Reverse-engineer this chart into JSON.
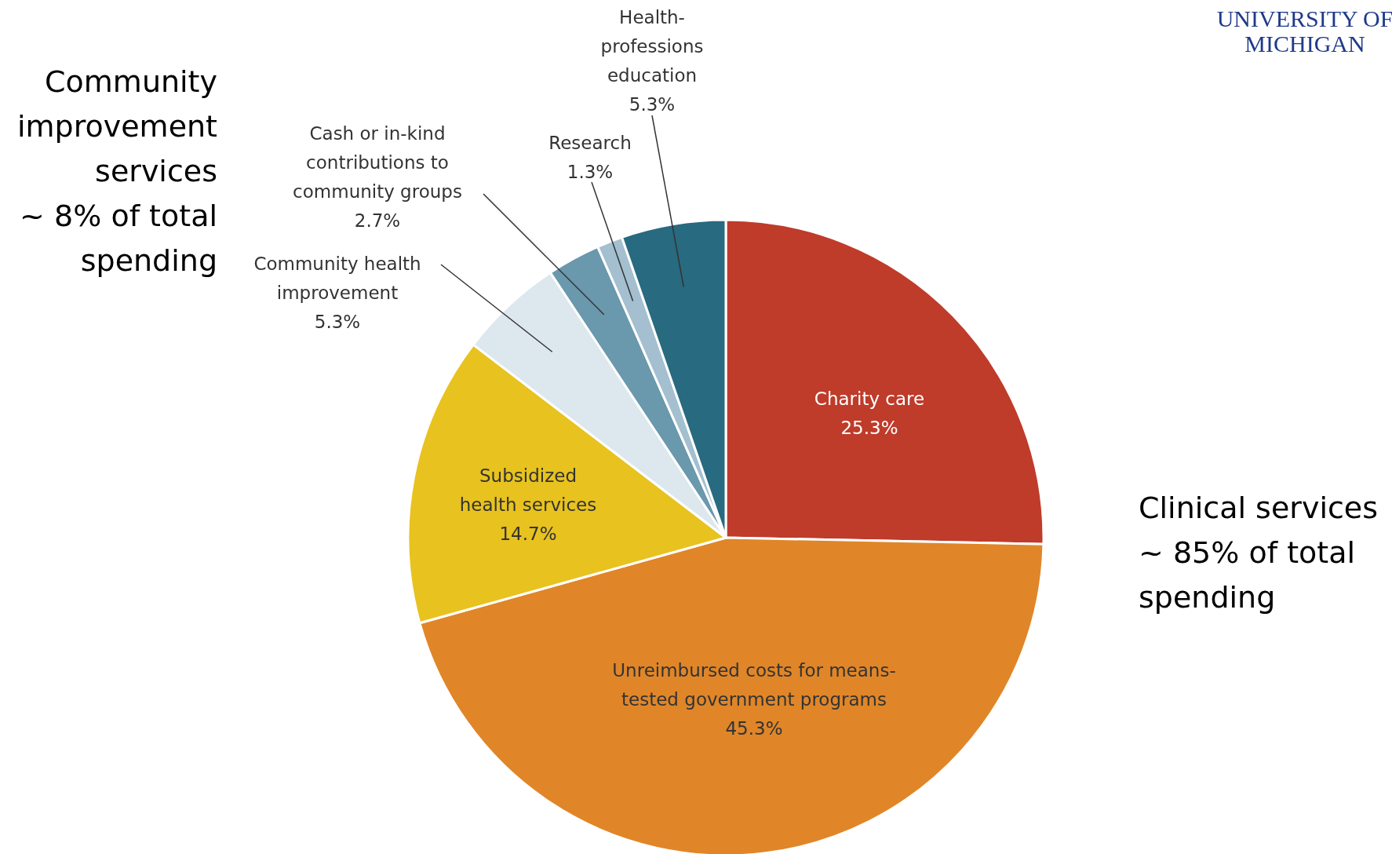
{
  "chart_data": {
    "type": "pie",
    "categories": [
      "Charity care",
      "Unreimbursed costs for means-tested government programs",
      "Subsidized health services",
      "Community health improvement",
      "Cash or in-kind contributions to community groups",
      "Research",
      "Health-professions education"
    ],
    "values": [
      25.3,
      45.3,
      14.7,
      5.3,
      2.7,
      1.3,
      5.3
    ],
    "value_labels": [
      "25.3%",
      "45.3%",
      "14.7%",
      "5.3%",
      "2.7%",
      "1.3%",
      "5.3%"
    ],
    "colors": [
      "#bf3b2a",
      "#e08628",
      "#e8c21e",
      "#dde7ee",
      "#6a98ad",
      "#a4bfcf",
      "#286a80"
    ],
    "annotations": [
      "Community improvement services ~ 8% of total spending",
      "Clinical services ~ 85% of total spending",
      "UNIVERSITY OF MICHIGAN"
    ]
  }
}
